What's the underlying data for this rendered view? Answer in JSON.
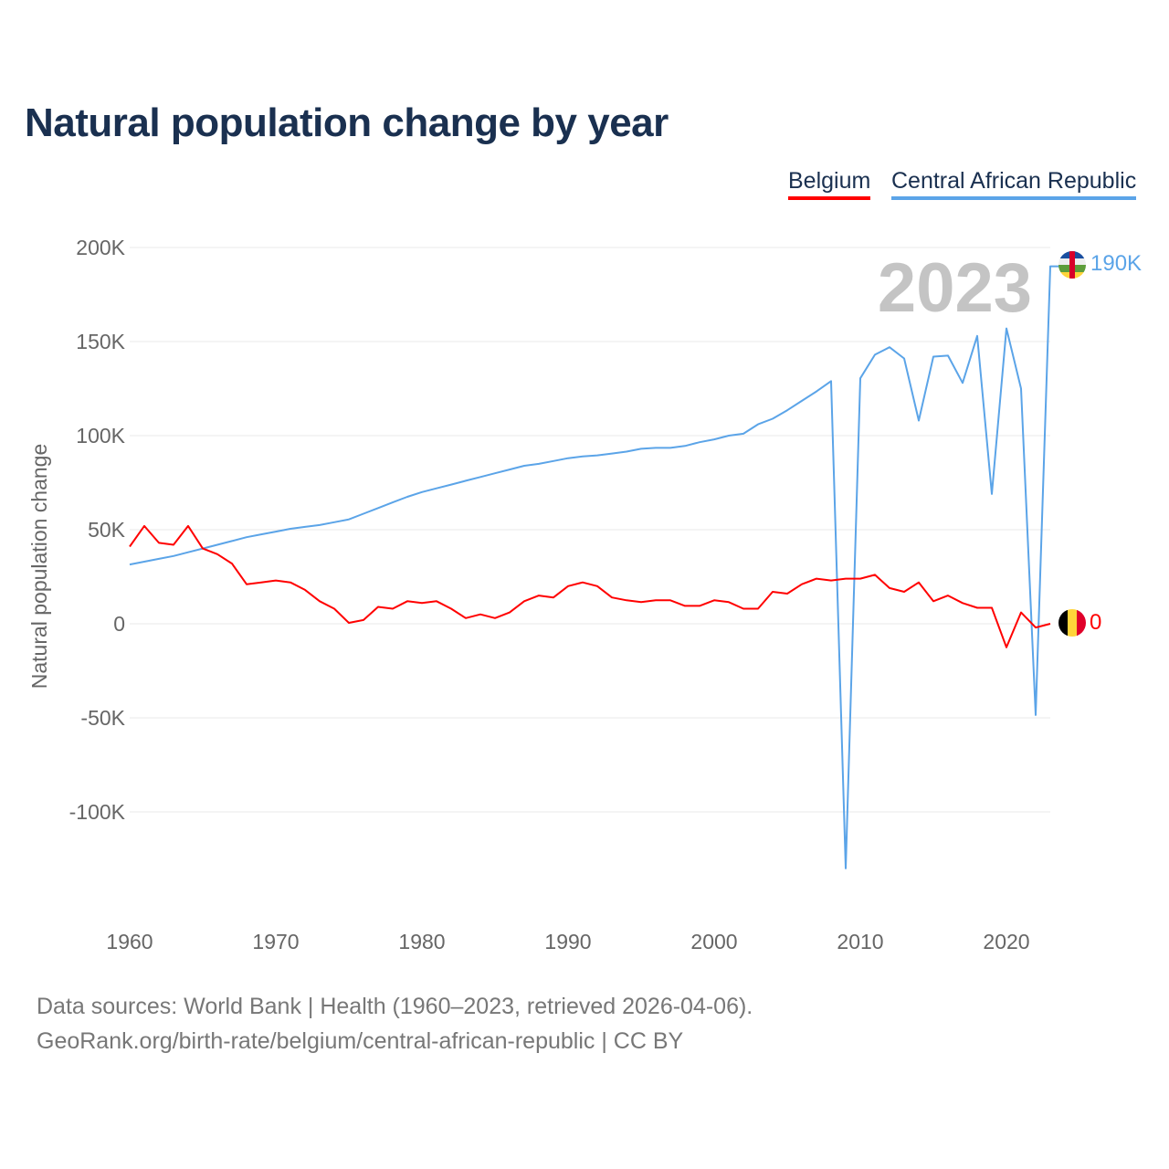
{
  "title": "Natural population change by year",
  "legend": [
    {
      "name": "Belgium",
      "color": "#ff0000"
    },
    {
      "name": "Central African Republic",
      "color": "#5ba4e8"
    }
  ],
  "year_overlay": "2023",
  "end_labels": {
    "Belgium": "0",
    "Central African Republic": "190K"
  },
  "sources": [
    "Data sources: World Bank | Health (1960–2023, retrieved 2026-04-06).",
    "GeoRank.org/birth-rate/belgium/central-african-republic | CC BY"
  ],
  "chart_data": {
    "type": "line",
    "title": "Natural population change by year",
    "xlabel": "",
    "ylabel": "Natural population change",
    "xlim": [
      1960,
      2023
    ],
    "ylim": [
      -150000,
      200000
    ],
    "grid": true,
    "legend_position": "top-right",
    "x_ticks": [
      1960,
      1970,
      1980,
      1990,
      2000,
      2010,
      2020
    ],
    "y_ticks": [
      {
        "v": 200000,
        "label": "200K"
      },
      {
        "v": 150000,
        "label": "150K"
      },
      {
        "v": 100000,
        "label": "100K"
      },
      {
        "v": 50000,
        "label": "50K"
      },
      {
        "v": 0,
        "label": "0"
      },
      {
        "v": -50000,
        "label": "-50K"
      },
      {
        "v": -100000,
        "label": "-100K"
      }
    ],
    "x_start": 1960,
    "series": [
      {
        "name": "Belgium",
        "color": "#ff0000",
        "values": [
          41000,
          52000,
          43000,
          42000,
          52000,
          40000,
          37000,
          32000,
          21000,
          22000,
          23000,
          22000,
          18000,
          12000,
          8000,
          500,
          2000,
          9000,
          8000,
          12000,
          11000,
          12000,
          8000,
          3000,
          5000,
          3000,
          6000,
          12000,
          15000,
          14000,
          20000,
          22000,
          20000,
          14000,
          12500,
          11500,
          12500,
          12500,
          9500,
          9500,
          12500,
          11500,
          8000,
          8000,
          17000,
          16000,
          21000,
          24000,
          23000,
          24000,
          24000,
          26000,
          19000,
          17000,
          22000,
          12000,
          15000,
          11000,
          8500,
          8500,
          -12500,
          6000,
          -2000,
          0
        ]
      },
      {
        "name": "Central African Republic",
        "color": "#5ba4e8",
        "values": [
          31500,
          33000,
          34500,
          36000,
          38000,
          40000,
          42000,
          44000,
          46000,
          47500,
          49000,
          50500,
          51500,
          52500,
          54000,
          55500,
          58500,
          61500,
          64500,
          67500,
          70000,
          72000,
          74000,
          76000,
          78000,
          80000,
          82000,
          84000,
          85000,
          86500,
          88000,
          89000,
          89500,
          90500,
          91500,
          93000,
          93500,
          93500,
          94500,
          96500,
          98000,
          100000,
          101000,
          106000,
          109000,
          113500,
          118500,
          123500,
          129000,
          -130000,
          130500,
          143000,
          147000,
          141000,
          108000,
          142000,
          142500,
          128000,
          153000,
          69000,
          157000,
          125000,
          -48500,
          190000
        ]
      }
    ]
  }
}
